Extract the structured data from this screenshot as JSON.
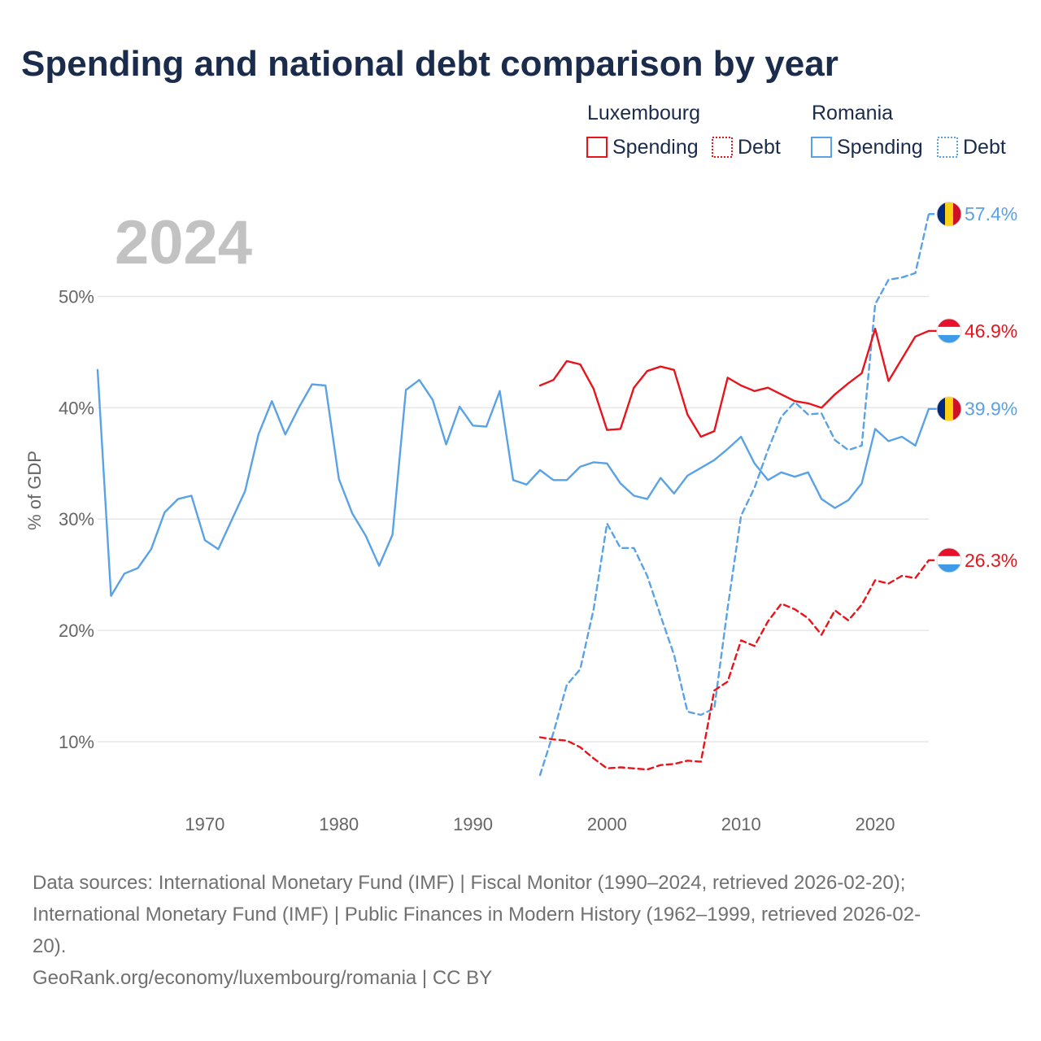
{
  "title": "Spending and national debt comparison by year",
  "year_label": "2024",
  "legend": {
    "groups": [
      {
        "country": "Luxembourg",
        "items": [
          {
            "label": "Spending",
            "style": "solid",
            "color": "#e8141c"
          },
          {
            "label": "Debt",
            "style": "dotted",
            "color": "#e8141c"
          }
        ]
      },
      {
        "country": "Romania",
        "items": [
          {
            "label": "Spending",
            "style": "solid",
            "color": "#5aa2e6"
          },
          {
            "label": "Debt",
            "style": "dotted",
            "color": "#5aa2e6"
          }
        ]
      }
    ]
  },
  "colors": {
    "luxembourg": "#e8141c",
    "romania": "#5aa2e6",
    "grid": "#e6e6e6",
    "title": "#1b2b4b"
  },
  "chart_data": {
    "type": "line",
    "title": "Spending and national debt comparison by year",
    "xlabel": "",
    "ylabel": "% of GDP",
    "xlim": [
      1962,
      2024
    ],
    "ylim": [
      4.3,
      58
    ],
    "x_ticks": [
      1970,
      1980,
      1990,
      2000,
      2010,
      2020
    ],
    "x_tick_labels": [
      "1970",
      "1980",
      "1990",
      "2000",
      "2010",
      "2020"
    ],
    "y_ticks": [
      10,
      20,
      30,
      40,
      50
    ],
    "y_tick_labels": [
      "10%",
      "20%",
      "30%",
      "40%",
      "50%"
    ],
    "grid": true,
    "series": [
      {
        "name": "Romania Spending",
        "country": "Romania",
        "measure": "Spending",
        "color": "#5aa2e6",
        "dashed": false,
        "end_label": "39.9%",
        "x": [
          1962,
          1963,
          1964,
          1965,
          1966,
          1967,
          1968,
          1969,
          1970,
          1971,
          1972,
          1973,
          1974,
          1975,
          1976,
          1977,
          1978,
          1979,
          1980,
          1981,
          1982,
          1983,
          1984,
          1985,
          1986,
          1987,
          1988,
          1989,
          1990,
          1991,
          1992,
          1993,
          1994,
          1995,
          1996,
          1997,
          1998,
          1999,
          2000,
          2001,
          2002,
          2003,
          2004,
          2005,
          2006,
          2007,
          2008,
          2009,
          2010,
          2011,
          2012,
          2013,
          2014,
          2015,
          2016,
          2017,
          2018,
          2019,
          2020,
          2021,
          2022,
          2023,
          2024
        ],
        "y": [
          43.4,
          23.1,
          25.1,
          25.6,
          27.3,
          30.6,
          31.8,
          32.1,
          28.1,
          27.3,
          29.9,
          32.5,
          37.6,
          40.6,
          37.6,
          40.0,
          42.1,
          42.0,
          33.6,
          30.5,
          28.5,
          25.8,
          28.6,
          41.6,
          42.5,
          40.7,
          36.7,
          40.1,
          38.4,
          38.3,
          41.5,
          33.5,
          33.1,
          34.4,
          33.5,
          33.5,
          34.7,
          35.1,
          35.0,
          33.2,
          32.1,
          31.8,
          33.7,
          32.3,
          33.9,
          34.6,
          35.3,
          36.3,
          37.4,
          35.0,
          33.5,
          34.2,
          33.8,
          34.2,
          31.8,
          31.0,
          31.7,
          33.2,
          38.1,
          37.0,
          37.4,
          36.6,
          39.9
        ]
      },
      {
        "name": "Romania Debt",
        "country": "Romania",
        "measure": "Debt",
        "color": "#5aa2e6",
        "dashed": true,
        "end_label": "57.4%",
        "x": [
          1995,
          1996,
          1997,
          1998,
          1999,
          2000,
          2001,
          2002,
          2003,
          2004,
          2005,
          2006,
          2007,
          2008,
          2009,
          2010,
          2011,
          2012,
          2013,
          2014,
          2015,
          2016,
          2017,
          2018,
          2019,
          2020,
          2021,
          2022,
          2023,
          2024
        ],
        "y": [
          7.0,
          10.8,
          15.1,
          16.5,
          21.9,
          29.6,
          27.4,
          27.4,
          24.9,
          21.3,
          17.8,
          12.7,
          12.4,
          13.0,
          22.0,
          30.3,
          32.8,
          36.2,
          39.2,
          40.5,
          39.4,
          39.5,
          37.1,
          36.2,
          36.6,
          49.3,
          51.5,
          51.7,
          52.1,
          57.4
        ]
      },
      {
        "name": "Luxembourg Spending",
        "country": "Luxembourg",
        "measure": "Spending",
        "color": "#e8141c",
        "dashed": false,
        "end_label": "46.9%",
        "x": [
          1995,
          1996,
          1997,
          1998,
          1999,
          2000,
          2001,
          2002,
          2003,
          2004,
          2005,
          2006,
          2007,
          2008,
          2009,
          2010,
          2011,
          2012,
          2013,
          2014,
          2015,
          2016,
          2017,
          2018,
          2019,
          2020,
          2021,
          2022,
          2023,
          2024
        ],
        "y": [
          42.0,
          42.5,
          44.2,
          43.9,
          41.7,
          38.0,
          38.1,
          41.8,
          43.3,
          43.7,
          43.4,
          39.4,
          37.4,
          37.9,
          42.7,
          42.0,
          41.5,
          41.8,
          41.2,
          40.6,
          40.4,
          40.0,
          41.2,
          42.2,
          43.1,
          47.1,
          42.4,
          44.4,
          46.4,
          46.9
        ]
      },
      {
        "name": "Luxembourg Debt",
        "country": "Luxembourg",
        "measure": "Debt",
        "color": "#e8141c",
        "dashed": true,
        "end_label": "26.3%",
        "x": [
          1995,
          1996,
          1997,
          1998,
          1999,
          2000,
          2001,
          2002,
          2003,
          2004,
          2005,
          2006,
          2007,
          2008,
          2009,
          2010,
          2011,
          2012,
          2013,
          2014,
          2015,
          2016,
          2017,
          2018,
          2019,
          2020,
          2021,
          2022,
          2023,
          2024
        ],
        "y": [
          10.4,
          10.2,
          10.1,
          9.5,
          8.5,
          7.6,
          7.7,
          7.6,
          7.5,
          7.9,
          8.0,
          8.3,
          8.2,
          14.6,
          15.4,
          19.1,
          18.6,
          20.8,
          22.4,
          21.9,
          21.1,
          19.6,
          21.8,
          20.9,
          22.3,
          24.5,
          24.2,
          24.9,
          24.7,
          26.3
        ]
      }
    ]
  },
  "footer": {
    "sources_line1": "Data sources: International Monetary Fund (IMF) | Fiscal Monitor (1990–2024, retrieved 2026-02-20);",
    "sources_line2": "International Monetary Fund (IMF) | Public Finances in Modern History (1962–1999, retrieved 2026-02-",
    "sources_line3": "20).",
    "credit": "GeoRank.org/economy/luxembourg/romania | CC BY"
  }
}
